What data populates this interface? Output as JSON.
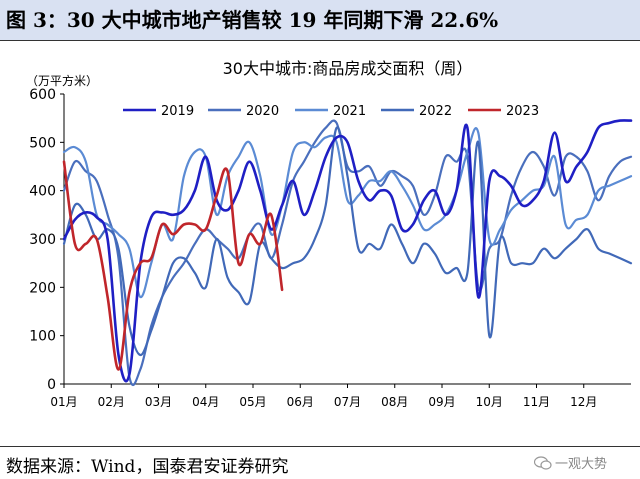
{
  "figure": {
    "title": "图 3：30 大中城市地产销售较 19 年同期下滑 22.6%",
    "source": "数据来源：Wind，国泰君安证券研究",
    "watermark": "一观大势"
  },
  "chart_data": {
    "type": "line",
    "title": "30大中城市:商品房成交面积（周）",
    "ylabel": "（万平方米）",
    "xlabel": "",
    "ylim": [
      0,
      600
    ],
    "yticks": [
      0,
      100,
      200,
      300,
      400,
      500,
      600
    ],
    "xlim": [
      0,
      52
    ],
    "xtick_labels": [
      "01月",
      "02月",
      "03月",
      "04月",
      "05月",
      "06月",
      "07月",
      "08月",
      "09月",
      "10月",
      "11月",
      "12月"
    ],
    "grid": false,
    "legend_position": "top",
    "series": [
      {
        "name": "2019",
        "color": "#1f1fc4",
        "x": [
          0,
          1,
          2,
          3,
          4,
          5,
          6,
          7,
          8,
          9,
          10,
          11,
          12,
          13,
          14,
          15,
          16,
          17,
          18,
          19,
          20,
          21,
          22,
          23,
          24,
          25,
          26,
          27,
          28,
          29,
          30,
          31,
          32,
          33,
          34,
          35,
          36,
          37,
          38,
          39,
          40,
          41,
          42,
          43,
          44,
          45,
          46,
          47,
          48,
          49,
          50,
          51,
          52
        ],
        "values": [
          300,
          340,
          355,
          345,
          300,
          60,
          20,
          250,
          345,
          355,
          350,
          360,
          400,
          470,
          380,
          360,
          400,
          460,
          400,
          320,
          370,
          420,
          350,
          400,
          470,
          510,
          500,
          420,
          380,
          400,
          390,
          320,
          330,
          380,
          400,
          350,
          400,
          530,
          180,
          420,
          430,
          410,
          370,
          380,
          420,
          520,
          420,
          450,
          480,
          530,
          540,
          545,
          545
        ]
      },
      {
        "name": "2020",
        "color": "#4a6fbd",
        "x": [
          0,
          1,
          2,
          3,
          4,
          5,
          6,
          7,
          8,
          9,
          10,
          11,
          12,
          13,
          14,
          15,
          16,
          17,
          18,
          19,
          20,
          21,
          22,
          23,
          24,
          25,
          26,
          27,
          28,
          29,
          30,
          31,
          32,
          33,
          34,
          35,
          36,
          37,
          38,
          39,
          40,
          41,
          42,
          43,
          44,
          45,
          46,
          47,
          48,
          49,
          50,
          51,
          52
        ],
        "values": [
          400,
          460,
          440,
          420,
          350,
          260,
          15,
          30,
          120,
          180,
          220,
          250,
          290,
          320,
          300,
          280,
          260,
          310,
          330,
          260,
          330,
          420,
          460,
          500,
          530,
          540,
          450,
          440,
          450,
          410,
          440,
          430,
          410,
          350,
          390,
          470,
          460,
          470,
          200,
          280,
          300,
          390,
          450,
          480,
          450,
          390,
          470,
          470,
          440,
          380,
          430,
          460,
          470
        ]
      },
      {
        "name": "2021",
        "color": "#5b8bd4",
        "x": [
          0,
          1,
          2,
          3,
          4,
          5,
          6,
          7,
          8,
          9,
          10,
          11,
          12,
          13,
          14,
          15,
          16,
          17,
          18,
          19,
          20,
          21,
          22,
          23,
          24,
          25,
          26,
          27,
          28,
          29,
          30,
          31,
          32,
          33,
          34,
          35,
          36,
          37,
          38,
          39,
          40,
          41,
          42,
          43,
          44,
          45,
          46,
          47,
          48,
          49,
          50,
          51,
          52
        ],
        "values": [
          480,
          490,
          460,
          350,
          330,
          310,
          280,
          180,
          250,
          330,
          300,
          430,
          480,
          470,
          350,
          430,
          470,
          500,
          430,
          310,
          370,
          480,
          500,
          490,
          510,
          500,
          380,
          390,
          420,
          420,
          440,
          410,
          370,
          320,
          330,
          350,
          400,
          480,
          520,
          300,
          320,
          360,
          380,
          400,
          410,
          470,
          330,
          340,
          350,
          400,
          410,
          420,
          430
        ]
      },
      {
        "name": "2022",
        "color": "#4169b8",
        "x": [
          0,
          1,
          2,
          3,
          4,
          5,
          6,
          7,
          8,
          9,
          10,
          11,
          12,
          13,
          14,
          15,
          16,
          17,
          18,
          19,
          20,
          21,
          22,
          23,
          24,
          25,
          26,
          27,
          28,
          29,
          30,
          31,
          32,
          33,
          34,
          35,
          36,
          37,
          38,
          39,
          40,
          41,
          42,
          43,
          44,
          45,
          46,
          47,
          48,
          49,
          50,
          51,
          52
        ],
        "values": [
          290,
          370,
          350,
          300,
          320,
          280,
          120,
          60,
          110,
          180,
          250,
          260,
          230,
          200,
          300,
          220,
          190,
          170,
          290,
          260,
          240,
          250,
          260,
          300,
          370,
          530,
          430,
          280,
          290,
          280,
          330,
          290,
          250,
          290,
          270,
          230,
          240,
          230,
          500,
          100,
          300,
          250,
          250,
          250,
          280,
          260,
          280,
          300,
          320,
          280,
          270,
          260,
          250
        ]
      },
      {
        "name": "2023",
        "color": "#c0262b",
        "x": [
          0,
          1,
          2,
          3,
          4,
          5,
          6,
          7,
          8,
          9,
          10,
          11,
          12,
          13,
          14,
          15,
          16,
          17,
          18,
          19,
          20
        ],
        "values": [
          460,
          290,
          290,
          300,
          180,
          30,
          190,
          250,
          260,
          330,
          310,
          330,
          330,
          320,
          390,
          440,
          250,
          310,
          290,
          350,
          195
        ]
      }
    ]
  }
}
